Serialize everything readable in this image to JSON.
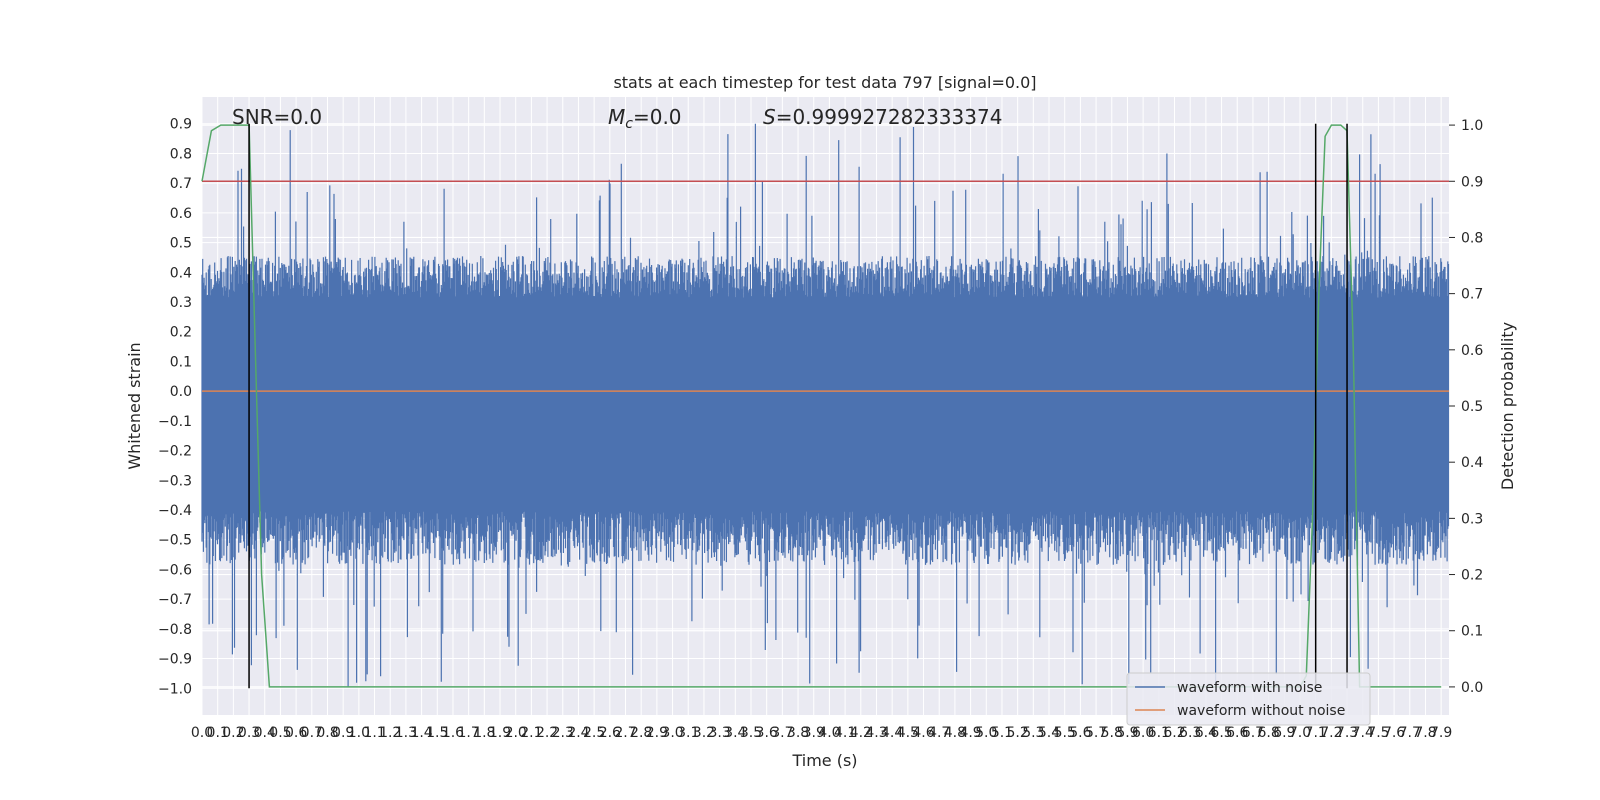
{
  "chart_data": {
    "type": "line",
    "title": "stats at each timestep for test data 797 [signal=0.0]",
    "xlabel": "Time (s)",
    "ylabel_left": "Whitened strain",
    "ylabel_right": "Detection probability",
    "xlim": [
      0.0,
      7.95
    ],
    "ylim_left": [
      -1.09,
      0.99
    ],
    "ylim_right": [
      -0.05,
      1.05
    ],
    "x_ticks": [
      "0.0",
      "0.1",
      "0.2",
      "0.3",
      "0.4",
      "0.5",
      "0.6",
      "0.7",
      "0.8",
      "0.9",
      "1.0",
      "1.1",
      "1.2",
      "1.3",
      "1.4",
      "1.5",
      "1.6",
      "1.7",
      "1.8",
      "1.9",
      "2.0",
      "2.1",
      "2.2",
      "2.3",
      "2.4",
      "2.5",
      "2.6",
      "2.7",
      "2.8",
      "2.9",
      "3.0",
      "3.1",
      "3.2",
      "3.3",
      "3.4",
      "3.5",
      "3.6",
      "3.7",
      "3.8",
      "3.9",
      "4.0",
      "4.1",
      "4.2",
      "4.3",
      "4.4",
      "4.5",
      "4.6",
      "4.7",
      "4.8",
      "4.9",
      "5.0",
      "5.1",
      "5.2",
      "5.3",
      "5.4",
      "5.5",
      "5.6",
      "5.7",
      "5.8",
      "5.9",
      "6.0",
      "6.1",
      "6.2",
      "6.3",
      "6.4",
      "6.5",
      "6.6",
      "6.7",
      "6.8",
      "6.9",
      "7.0",
      "7.1",
      "7.2",
      "7.3",
      "7.4",
      "7.5",
      "7.6",
      "7.7",
      "7.8",
      "7.9"
    ],
    "y_ticks_left": [
      "0.9",
      "0.8",
      "0.7",
      "0.6",
      "0.5",
      "0.4",
      "0.3",
      "0.2",
      "0.1",
      "0.0",
      "−0.1",
      "−0.2",
      "−0.3",
      "−0.4",
      "−0.5",
      "−0.6",
      "−0.7",
      "−0.8",
      "−0.9",
      "−1.0"
    ],
    "y_ticks_right": [
      "1.0",
      "0.9",
      "0.8",
      "0.7",
      "0.6",
      "0.5",
      "0.4",
      "0.3",
      "0.2",
      "0.1",
      "0.0"
    ],
    "annotations": {
      "snr": "SNR=0.0",
      "mc_symbol": "M",
      "mc_sub": "c",
      "mc_value": "=0.0",
      "s_symbol": "S",
      "s_value": "=0.999927282333374"
    },
    "threshold_line": {
      "value": 0.9,
      "axis": "right",
      "color": "#c44e52"
    },
    "detection_segments": [
      0.3,
      7.1,
      7.3
    ],
    "series": [
      {
        "name": "waveform with noise",
        "color": "#4c72b0",
        "axis": "left",
        "kind": "noise",
        "typical_range": [
          -0.45,
          0.35
        ],
        "peak_range": [
          -1.0,
          0.9
        ]
      },
      {
        "name": "waveform without noise",
        "color": "#dd8452",
        "axis": "left",
        "kind": "constant",
        "value": 0.0
      },
      {
        "name": "detection probability",
        "color": "#55a868",
        "axis": "right",
        "kind": "line",
        "x": [
          0.0,
          0.06,
          0.12,
          0.2,
          0.26,
          0.3,
          0.34,
          0.38,
          0.43,
          0.5,
          1.0,
          2.0,
          3.0,
          4.0,
          5.0,
          6.0,
          6.9,
          7.0,
          7.04,
          7.08,
          7.12,
          7.16,
          7.2,
          7.26,
          7.3,
          7.34,
          7.38,
          7.42,
          7.46,
          7.5,
          7.9
        ],
        "y": [
          0.9,
          0.99,
          1.0,
          1.0,
          1.0,
          1.0,
          0.6,
          0.2,
          0.0,
          0.0,
          0.0,
          0.0,
          0.0,
          0.0,
          0.0,
          0.0,
          0.0,
          0.0,
          0.02,
          0.3,
          0.7,
          0.98,
          1.0,
          1.0,
          0.99,
          0.6,
          0.0,
          0.0,
          0.0,
          0.0,
          0.0
        ]
      }
    ],
    "legend": {
      "placement": "lower-right",
      "entries": [
        "waveform with noise",
        "waveform without noise"
      ]
    }
  }
}
